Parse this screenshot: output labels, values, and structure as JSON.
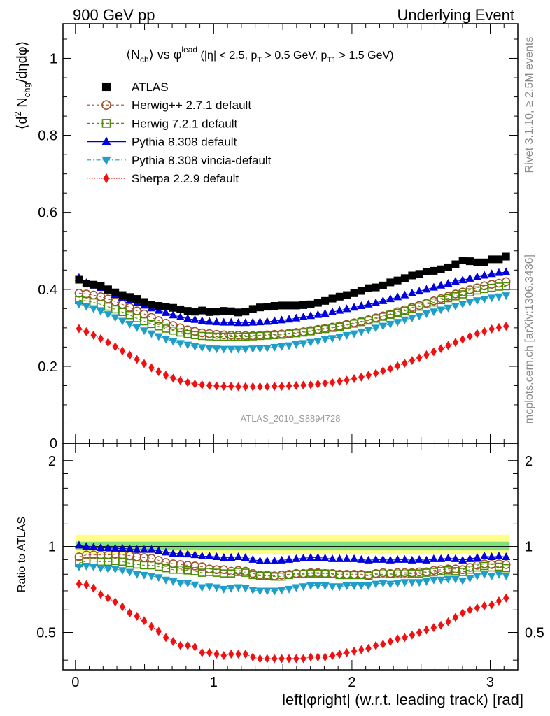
{
  "header": {
    "left": "900 GeV pp",
    "right": "Underlying Event"
  },
  "side_text": {
    "rivet": "Rivet 3.1.10, ≥ 2.5M events",
    "mcplots": "mcplots.cern.ch [arXiv:1306.3436]"
  },
  "watermark": "ATLAS_2010_S8894728",
  "colors": {
    "ATLAS": "#000000",
    "Herwig++ 2.7.1 default": "#a0522d",
    "Herwig 7.2.1 default": "#4d8c00",
    "Pythia 8.308 default": "#0000dd",
    "Pythia 8.308 vincia-default": "#1f9fc8",
    "Sherpa 2.2.9 default": "#ee1111",
    "band_outer": "#ffff88",
    "band_inner": "#7fe07f"
  },
  "chart_data": [
    {
      "type": "scatter",
      "panel": "main",
      "title_parts": {
        "n": "⟨N",
        "n_sub": "ch",
        "vs": "⟩ vs φ",
        "lead_sup": "lead",
        "cuts_a": " (|η| < 2.5, p",
        "cuts_a_sub": "T",
        "cuts_b": " > 0.5 GeV, p",
        "cuts_b_sub": "T1",
        "cuts_c": " > 1.5 GeV)"
      },
      "ylabel_parts": {
        "a": "⟨d",
        "a_sup": "2",
        "b": " N",
        "b_sub": "chg",
        "c": "/dηdφ⟩"
      },
      "xlim": [
        -0.09,
        3.2
      ],
      "ylim": [
        0,
        1.09
      ],
      "yticks": [
        0,
        0.2,
        0.4,
        0.6,
        0.8,
        1
      ],
      "ytick_labels": [
        "0",
        "0.2",
        "0.4",
        "0.6",
        "0.8",
        "1"
      ],
      "legend_position": "top-left",
      "x": [
        0.026,
        0.079,
        0.131,
        0.183,
        0.236,
        0.288,
        0.34,
        0.393,
        0.445,
        0.497,
        0.55,
        0.602,
        0.654,
        0.707,
        0.759,
        0.812,
        0.864,
        0.916,
        0.969,
        1.021,
        1.073,
        1.126,
        1.178,
        1.23,
        1.283,
        1.335,
        1.387,
        1.44,
        1.492,
        1.545,
        1.597,
        1.649,
        1.702,
        1.754,
        1.806,
        1.859,
        1.911,
        1.963,
        2.016,
        2.068,
        2.12,
        2.173,
        2.225,
        2.278,
        2.33,
        2.382,
        2.435,
        2.487,
        2.539,
        2.592,
        2.644,
        2.696,
        2.749,
        2.801,
        2.853,
        2.906,
        2.958,
        3.011,
        3.063,
        3.115
      ],
      "series": [
        {
          "name": "ATLAS",
          "marker": "square-filled",
          "line": "none",
          "values": [
            0.425,
            0.415,
            0.412,
            0.408,
            0.4,
            0.392,
            0.385,
            0.38,
            0.375,
            0.367,
            0.36,
            0.357,
            0.355,
            0.352,
            0.348,
            0.344,
            0.342,
            0.345,
            0.341,
            0.342,
            0.344,
            0.343,
            0.34,
            0.342,
            0.349,
            0.353,
            0.355,
            0.357,
            0.358,
            0.358,
            0.358,
            0.359,
            0.361,
            0.365,
            0.37,
            0.376,
            0.381,
            0.385,
            0.39,
            0.396,
            0.403,
            0.405,
            0.41,
            0.418,
            0.423,
            0.429,
            0.436,
            0.44,
            0.446,
            0.448,
            0.452,
            0.457,
            0.465,
            0.475,
            0.473,
            0.47,
            0.47,
            0.478,
            0.478,
            0.485
          ]
        },
        {
          "name": "Herwig++ 2.7.1 default",
          "marker": "circle-open",
          "line": "dashed",
          "values": [
            0.39,
            0.388,
            0.385,
            0.381,
            0.375,
            0.368,
            0.361,
            0.353,
            0.344,
            0.336,
            0.327,
            0.319,
            0.312,
            0.306,
            0.3,
            0.295,
            0.291,
            0.287,
            0.285,
            0.283,
            0.282,
            0.281,
            0.281,
            0.28,
            0.28,
            0.281,
            0.282,
            0.283,
            0.284,
            0.286,
            0.288,
            0.29,
            0.293,
            0.296,
            0.299,
            0.302,
            0.305,
            0.309,
            0.313,
            0.317,
            0.321,
            0.326,
            0.331,
            0.336,
            0.342,
            0.347,
            0.353,
            0.358,
            0.364,
            0.37,
            0.376,
            0.382,
            0.388,
            0.393,
            0.399,
            0.404,
            0.409,
            0.413,
            0.416,
            0.42
          ]
        },
        {
          "name": "Herwig 7.2.1 default",
          "marker": "square-open",
          "line": "dashed",
          "values": [
            0.372,
            0.37,
            0.366,
            0.361,
            0.355,
            0.348,
            0.341,
            0.333,
            0.325,
            0.317,
            0.31,
            0.304,
            0.298,
            0.293,
            0.288,
            0.284,
            0.281,
            0.279,
            0.278,
            0.277,
            0.277,
            0.277,
            0.277,
            0.277,
            0.278,
            0.279,
            0.28,
            0.281,
            0.282,
            0.284,
            0.286,
            0.288,
            0.291,
            0.294,
            0.297,
            0.3,
            0.303,
            0.307,
            0.311,
            0.315,
            0.319,
            0.324,
            0.329,
            0.334,
            0.339,
            0.344,
            0.35,
            0.355,
            0.361,
            0.366,
            0.372,
            0.377,
            0.382,
            0.387,
            0.392,
            0.397,
            0.401,
            0.404,
            0.407,
            0.408
          ]
        },
        {
          "name": "Pythia 8.308 default",
          "marker": "triangle-up-filled",
          "line": "solid",
          "values": [
            0.43,
            0.417,
            0.41,
            0.404,
            0.396,
            0.386,
            0.379,
            0.372,
            0.365,
            0.358,
            0.351,
            0.345,
            0.339,
            0.333,
            0.328,
            0.324,
            0.321,
            0.318,
            0.316,
            0.315,
            0.314,
            0.314,
            0.313,
            0.313,
            0.314,
            0.315,
            0.316,
            0.318,
            0.32,
            0.322,
            0.325,
            0.328,
            0.331,
            0.334,
            0.337,
            0.341,
            0.345,
            0.349,
            0.353,
            0.357,
            0.361,
            0.365,
            0.37,
            0.375,
            0.38,
            0.385,
            0.39,
            0.395,
            0.4,
            0.405,
            0.41,
            0.415,
            0.42,
            0.424,
            0.428,
            0.432,
            0.436,
            0.44,
            0.443,
            0.445
          ]
        },
        {
          "name": "Pythia 8.308 vincia-default",
          "marker": "triangle-down-filled",
          "line": "dashdot",
          "values": [
            0.362,
            0.356,
            0.35,
            0.343,
            0.335,
            0.327,
            0.318,
            0.31,
            0.301,
            0.293,
            0.285,
            0.278,
            0.271,
            0.265,
            0.26,
            0.256,
            0.252,
            0.249,
            0.247,
            0.246,
            0.245,
            0.245,
            0.245,
            0.245,
            0.246,
            0.247,
            0.248,
            0.25,
            0.252,
            0.254,
            0.257,
            0.26,
            0.263,
            0.266,
            0.27,
            0.273,
            0.277,
            0.281,
            0.285,
            0.29,
            0.295,
            0.3,
            0.305,
            0.31,
            0.315,
            0.321,
            0.326,
            0.331,
            0.337,
            0.342,
            0.347,
            0.352,
            0.357,
            0.362,
            0.367,
            0.371,
            0.375,
            0.378,
            0.381,
            0.384
          ]
        },
        {
          "name": "Sherpa 2.2.9 default",
          "marker": "diamond-filled",
          "line": "dotted",
          "values": [
            0.298,
            0.29,
            0.281,
            0.272,
            0.262,
            0.251,
            0.24,
            0.229,
            0.218,
            0.207,
            0.196,
            0.186,
            0.177,
            0.169,
            0.163,
            0.158,
            0.154,
            0.152,
            0.15,
            0.149,
            0.148,
            0.148,
            0.147,
            0.147,
            0.147,
            0.147,
            0.147,
            0.148,
            0.148,
            0.149,
            0.15,
            0.151,
            0.152,
            0.154,
            0.156,
            0.158,
            0.161,
            0.164,
            0.168,
            0.172,
            0.177,
            0.182,
            0.188,
            0.194,
            0.201,
            0.208,
            0.215,
            0.222,
            0.23,
            0.238,
            0.246,
            0.254,
            0.262,
            0.27,
            0.278,
            0.285,
            0.291,
            0.297,
            0.301,
            0.304
          ]
        }
      ]
    },
    {
      "type": "scatter",
      "panel": "ratio",
      "ylabel": "Ratio to ATLAS",
      "xlabel": "left|φright| (w.r.t. leading track) [rad]",
      "xlim": [
        -0.09,
        3.2
      ],
      "ylim": [
        0.37,
        2.3
      ],
      "log_y": true,
      "xticks": [
        0,
        1,
        2,
        3
      ],
      "xtick_labels": [
        "0",
        "1",
        "2",
        "3"
      ],
      "yticks": [
        0.5,
        1,
        2
      ],
      "ytick_labels": [
        "0.5",
        "1",
        "2"
      ],
      "reference_line": 1,
      "band_outer": [
        0.94,
        1.1
      ],
      "band_inner": [
        0.97,
        1.04
      ],
      "series": [
        {
          "name": "Herwig++ 2.7.1 default",
          "values": [
            0.92,
            0.935,
            0.935,
            0.935,
            0.935,
            0.94,
            0.935,
            0.93,
            0.92,
            0.915,
            0.91,
            0.895,
            0.88,
            0.87,
            0.865,
            0.86,
            0.855,
            0.85,
            0.835,
            0.83,
            0.83,
            0.82,
            0.825,
            0.82,
            0.805,
            0.795,
            0.795,
            0.79,
            0.795,
            0.8,
            0.805,
            0.805,
            0.81,
            0.81,
            0.805,
            0.805,
            0.8,
            0.8,
            0.8,
            0.8,
            0.795,
            0.805,
            0.81,
            0.805,
            0.81,
            0.81,
            0.81,
            0.815,
            0.815,
            0.825,
            0.83,
            0.835,
            0.835,
            0.83,
            0.845,
            0.86,
            0.87,
            0.865,
            0.87,
            0.865
          ]
        },
        {
          "name": "Herwig 7.2.1 default",
          "values": [
            0.875,
            0.89,
            0.89,
            0.885,
            0.885,
            0.89,
            0.885,
            0.875,
            0.865,
            0.86,
            0.86,
            0.85,
            0.84,
            0.83,
            0.83,
            0.825,
            0.82,
            0.81,
            0.815,
            0.81,
            0.805,
            0.805,
            0.815,
            0.81,
            0.795,
            0.79,
            0.79,
            0.785,
            0.785,
            0.795,
            0.8,
            0.8,
            0.805,
            0.805,
            0.805,
            0.8,
            0.795,
            0.795,
            0.795,
            0.795,
            0.79,
            0.8,
            0.8,
            0.8,
            0.8,
            0.8,
            0.805,
            0.805,
            0.81,
            0.815,
            0.82,
            0.825,
            0.82,
            0.815,
            0.83,
            0.845,
            0.855,
            0.845,
            0.85,
            0.84
          ]
        },
        {
          "name": "Pythia 8.308 default",
          "values": [
            1.01,
            1.0,
            0.995,
            0.99,
            0.99,
            0.985,
            0.985,
            0.98,
            0.975,
            0.975,
            0.975,
            0.965,
            0.955,
            0.945,
            0.945,
            0.94,
            0.935,
            0.925,
            0.925,
            0.92,
            0.915,
            0.915,
            0.92,
            0.915,
            0.9,
            0.89,
            0.89,
            0.89,
            0.895,
            0.9,
            0.905,
            0.91,
            0.915,
            0.915,
            0.91,
            0.905,
            0.905,
            0.905,
            0.905,
            0.9,
            0.895,
            0.9,
            0.9,
            0.895,
            0.9,
            0.9,
            0.895,
            0.9,
            0.895,
            0.905,
            0.905,
            0.91,
            0.905,
            0.895,
            0.905,
            0.915,
            0.925,
            0.92,
            0.925,
            0.92
          ]
        },
        {
          "name": "Pythia 8.308 vincia-default",
          "values": [
            0.85,
            0.855,
            0.85,
            0.84,
            0.835,
            0.835,
            0.825,
            0.815,
            0.8,
            0.795,
            0.79,
            0.78,
            0.765,
            0.755,
            0.745,
            0.745,
            0.735,
            0.72,
            0.725,
            0.72,
            0.71,
            0.715,
            0.72,
            0.715,
            0.705,
            0.7,
            0.7,
            0.7,
            0.705,
            0.71,
            0.72,
            0.725,
            0.73,
            0.73,
            0.73,
            0.725,
            0.725,
            0.73,
            0.73,
            0.73,
            0.73,
            0.74,
            0.745,
            0.74,
            0.745,
            0.75,
            0.75,
            0.75,
            0.755,
            0.765,
            0.765,
            0.77,
            0.77,
            0.76,
            0.775,
            0.79,
            0.8,
            0.79,
            0.8,
            0.79
          ]
        },
        {
          "name": "Sherpa 2.2.9 default",
          "values": [
            0.74,
            0.735,
            0.715,
            0.68,
            0.66,
            0.64,
            0.615,
            0.585,
            0.57,
            0.55,
            0.525,
            0.505,
            0.48,
            0.465,
            0.45,
            0.45,
            0.445,
            0.425,
            0.425,
            0.42,
            0.415,
            0.42,
            0.42,
            0.42,
            0.41,
            0.405,
            0.405,
            0.405,
            0.405,
            0.405,
            0.405,
            0.405,
            0.41,
            0.41,
            0.41,
            0.415,
            0.42,
            0.425,
            0.43,
            0.435,
            0.44,
            0.45,
            0.455,
            0.465,
            0.475,
            0.48,
            0.49,
            0.5,
            0.51,
            0.52,
            0.53,
            0.545,
            0.565,
            0.585,
            0.6,
            0.61,
            0.62,
            0.625,
            0.645,
            0.66
          ]
        }
      ]
    }
  ]
}
